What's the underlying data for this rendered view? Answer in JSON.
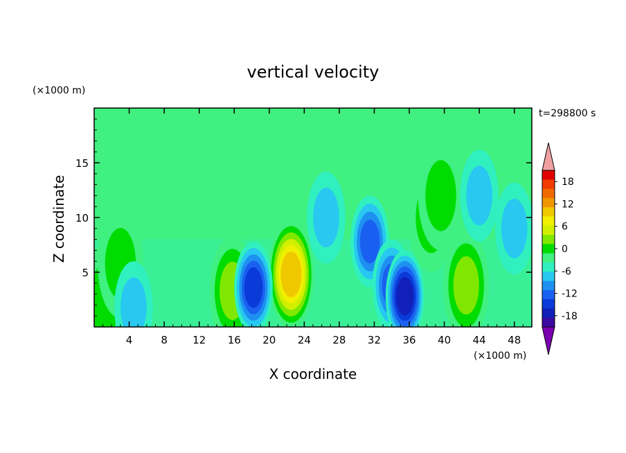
{
  "chart_data": {
    "type": "heatmap",
    "title": "vertical velocity",
    "xlabel": "X coordinate",
    "ylabel": "Z coordinate",
    "x_unit": "(×1000 m)",
    "y_unit": "(×1000 m)",
    "time_label": "t=298800 s",
    "xlim": [
      0,
      50
    ],
    "ylim": [
      0,
      20
    ],
    "x_ticks": [
      "4",
      "8",
      "12",
      "16",
      "20",
      "24",
      "28",
      "32",
      "36",
      "40",
      "44",
      "48"
    ],
    "y_ticks": [
      "5",
      "10",
      "15"
    ],
    "colorbar": {
      "min": -21,
      "max": 21,
      "step": 3,
      "tick_labels": [
        "18",
        "12",
        "6",
        "0",
        "-6",
        "-12",
        "-18"
      ],
      "colors": [
        "#7a00b0",
        "#3b0aa0",
        "#1020b8",
        "#0a3ad8",
        "#1a60f0",
        "#1e90f0",
        "#28c8f0",
        "#30f0c0",
        "#40f080",
        "#00dc00",
        "#80e800",
        "#d0f000",
        "#f0f000",
        "#f0c800",
        "#f09600",
        "#f06a00",
        "#f03c00",
        "#e00000",
        "#f0a0a0"
      ]
    },
    "background_value": 0,
    "features": [
      {
        "kind": "updraft",
        "x": 22.5,
        "z": 4.8,
        "peak": 16
      },
      {
        "kind": "updraft",
        "x": 15.8,
        "z": 3.3,
        "peak": 6
      },
      {
        "kind": "updraft",
        "x": 42.5,
        "z": 3.8,
        "peak": 7
      },
      {
        "kind": "updraft",
        "x": 1.2,
        "z": 2.5,
        "peak": 5
      },
      {
        "kind": "updraft",
        "x": 3.0,
        "z": 5.8,
        "peak": 3
      },
      {
        "kind": "updraft",
        "x": 38.5,
        "z": 10.0,
        "peak": 2
      },
      {
        "kind": "updraft",
        "x": 39.6,
        "z": 12.0,
        "peak": 4
      },
      {
        "kind": "downdraft",
        "x": 4.5,
        "z": 1.8,
        "peak": -5
      },
      {
        "kind": "downdraft",
        "x": 18.2,
        "z": 3.6,
        "peak": -12
      },
      {
        "kind": "downdraft",
        "x": 31.5,
        "z": 7.8,
        "peak": -11
      },
      {
        "kind": "downdraft",
        "x": 34.0,
        "z": 3.8,
        "peak": -11
      },
      {
        "kind": "downdraft",
        "x": 35.5,
        "z": 2.8,
        "peak": -16
      },
      {
        "kind": "downdraft",
        "x": 26.5,
        "z": 10.0,
        "peak": -5
      },
      {
        "kind": "downdraft",
        "x": 44.0,
        "z": 12.0,
        "peak": -4
      },
      {
        "kind": "downdraft",
        "x": 48.0,
        "z": 9.0,
        "peak": -4
      }
    ]
  }
}
